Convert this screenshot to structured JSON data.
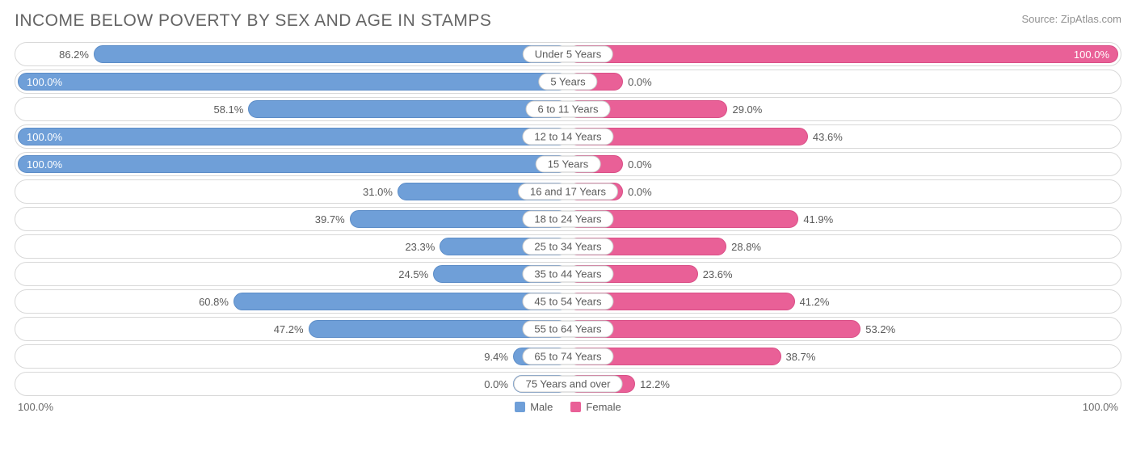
{
  "title": "INCOME BELOW POVERTY BY SEX AND AGE IN STAMPS",
  "source": "Source: ZipAtlas.com",
  "type": "diverging-bar",
  "colors": {
    "male": "#6f9fd8",
    "male_border": "#5b8cc7",
    "female": "#e96097",
    "female_border": "#d94e86",
    "row_border": "#d8d8d8",
    "text": "#5a5a5a",
    "background": "#ffffff"
  },
  "legend": {
    "male": "Male",
    "female": "Female"
  },
  "axis": {
    "left": "100.0%",
    "right": "100.0%"
  },
  "min_bar_pct": 10,
  "categories": [
    {
      "label": "Under 5 Years",
      "male": 86.2,
      "female": 100.0
    },
    {
      "label": "5 Years",
      "male": 100.0,
      "female": 0.0
    },
    {
      "label": "6 to 11 Years",
      "male": 58.1,
      "female": 29.0
    },
    {
      "label": "12 to 14 Years",
      "male": 100.0,
      "female": 43.6
    },
    {
      "label": "15 Years",
      "male": 100.0,
      "female": 0.0
    },
    {
      "label": "16 and 17 Years",
      "male": 31.0,
      "female": 0.0
    },
    {
      "label": "18 to 24 Years",
      "male": 39.7,
      "female": 41.9
    },
    {
      "label": "25 to 34 Years",
      "male": 23.3,
      "female": 28.8
    },
    {
      "label": "35 to 44 Years",
      "male": 24.5,
      "female": 23.6
    },
    {
      "label": "45 to 54 Years",
      "male": 60.8,
      "female": 41.2
    },
    {
      "label": "55 to 64 Years",
      "male": 47.2,
      "female": 53.2
    },
    {
      "label": "65 to 74 Years",
      "male": 9.4,
      "female": 38.7
    },
    {
      "label": "75 Years and over",
      "male": 0.0,
      "female": 12.2
    }
  ]
}
